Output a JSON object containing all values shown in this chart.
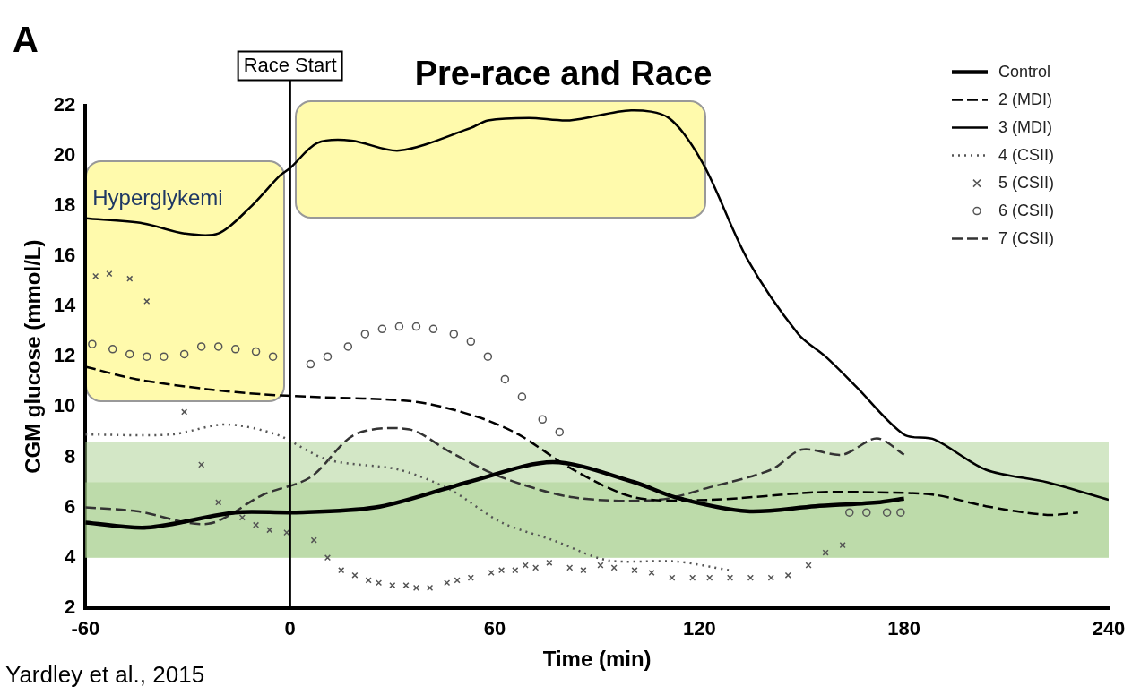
{
  "chart_data": {
    "type": "line",
    "title": "Pre-race and Race",
    "xlabel": "Time (min)",
    "ylabel": "CGM glucose (mmol/L)",
    "annotations": [
      "A",
      "Hyperglykemi",
      "Yardley et al., 2015"
    ],
    "xlim": [
      -60,
      240
    ],
    "xticks": [
      -60,
      0,
      60,
      120,
      180,
      240
    ],
    "ylim": [
      2,
      22
    ],
    "yticks": [
      2,
      4,
      6,
      8,
      10,
      12,
      14,
      16,
      18,
      20,
      22
    ],
    "grid": false,
    "legend": "top right",
    "ref_lines": [
      {
        "axis": "x",
        "value": 0,
        "label": "Race Start",
        "color": "#000000"
      }
    ],
    "bands": [
      {
        "axis": "y",
        "from": 4,
        "to": 8.6,
        "color": "#a8d08d"
      },
      {
        "axis": "y",
        "from": 4,
        "to": 7,
        "color": "#a8d08d"
      }
    ],
    "series": [
      {
        "name": "Control",
        "type": "line",
        "line_style": "solid",
        "marker": "none",
        "color": "#000000",
        "x": [
          -60,
          -42,
          -16,
          1,
          25,
          47,
          52,
          77,
          101,
          113,
          134,
          154,
          172,
          180
        ],
        "values": [
          5.4,
          5.2,
          5.8,
          5.8,
          6.0,
          6.8,
          7.0,
          7.8,
          7.0,
          6.4,
          5.85,
          6.05,
          6.2,
          6.35
        ]
      },
      {
        "name": "2 (MDI)",
        "type": "line",
        "line_style": "dashed",
        "marker": "none",
        "color": "#000000",
        "x": [
          -60,
          -45,
          -24,
          -8,
          6,
          37,
          55,
          67,
          83,
          101,
          123,
          154,
          172,
          189,
          204,
          222,
          231
        ],
        "values": [
          11.6,
          11.1,
          10.7,
          10.5,
          10.4,
          10.2,
          9.6,
          8.9,
          7.5,
          6.4,
          6.3,
          6.6,
          6.6,
          6.5,
          6.05,
          5.7,
          5.8
        ]
      },
      {
        "name": "3 (MDI)",
        "type": "line",
        "line_style": "solid",
        "marker": "none",
        "color": "#000000",
        "x": [
          -60,
          -43,
          -31,
          -21,
          -12,
          -3,
          0,
          8,
          18,
          32,
          53,
          58,
          70,
          82,
          100,
          111,
          121,
          134,
          149,
          157,
          166,
          180,
          189,
          204,
          222,
          240
        ],
        "values": [
          17.5,
          17.3,
          16.9,
          16.9,
          17.9,
          19.2,
          19.5,
          20.5,
          20.6,
          20.2,
          21.1,
          21.4,
          21.5,
          21.4,
          21.8,
          21.5,
          19.7,
          15.9,
          12.9,
          12.0,
          10.8,
          8.9,
          8.7,
          7.5,
          7.0,
          6.3
        ]
      },
      {
        "name": "4 (CSII)",
        "type": "line",
        "line_style": "dotted",
        "marker": "none",
        "color": "#555555",
        "x": [
          -60,
          -35,
          -19,
          -4,
          11,
          32,
          47,
          62,
          77,
          93,
          113,
          129
        ],
        "values": [
          8.9,
          8.9,
          9.3,
          8.9,
          7.9,
          7.5,
          6.7,
          5.4,
          4.7,
          3.9,
          3.85,
          3.5
        ]
      },
      {
        "name": "5 (CSII)",
        "type": "scatter",
        "line_style": "none",
        "marker": "cross",
        "color": "#555555",
        "x": [
          -57,
          -53,
          -47,
          -42,
          -31,
          -26,
          -21,
          -14,
          -10,
          -6,
          -1,
          7,
          11,
          15,
          19,
          23,
          26,
          30,
          34,
          37,
          41,
          46,
          49,
          53,
          59,
          62,
          66,
          69,
          72,
          76,
          82,
          86,
          91,
          95,
          101,
          106,
          112,
          118,
          123,
          129,
          135,
          141,
          146,
          152,
          157,
          162
        ],
        "values": [
          15.2,
          15.3,
          15.1,
          14.2,
          9.8,
          7.7,
          6.2,
          5.6,
          5.3,
          5.1,
          5.0,
          4.7,
          4.0,
          3.5,
          3.3,
          3.1,
          3.0,
          2.9,
          2.9,
          2.8,
          2.8,
          3.0,
          3.1,
          3.2,
          3.4,
          3.5,
          3.5,
          3.7,
          3.6,
          3.8,
          3.6,
          3.5,
          3.7,
          3.6,
          3.5,
          3.4,
          3.2,
          3.2,
          3.2,
          3.2,
          3.2,
          3.2,
          3.3,
          3.7,
          4.2,
          4.5
        ]
      },
      {
        "name": "6 (CSII)",
        "type": "scatter",
        "line_style": "none",
        "marker": "circle",
        "color": "#555555",
        "x": [
          -58,
          -52,
          -47,
          -42,
          -37,
          -31,
          -26,
          -21,
          -16,
          -10,
          -5,
          6,
          11,
          17,
          22,
          27,
          32,
          37,
          42,
          48,
          53,
          58,
          63,
          68,
          74,
          79,
          164,
          169,
          175,
          179
        ],
        "values": [
          12.5,
          12.3,
          12.1,
          12.0,
          12.0,
          12.1,
          12.4,
          12.4,
          12.3,
          12.2,
          12.0,
          11.7,
          12.0,
          12.4,
          12.9,
          13.1,
          13.2,
          13.2,
          13.1,
          12.9,
          12.6,
          12.0,
          11.1,
          10.4,
          9.5,
          9.0,
          5.8,
          5.8,
          5.8,
          5.8
        ]
      },
      {
        "name": "7 (CSII)",
        "type": "line",
        "line_style": "dashed",
        "marker": "none",
        "color": "#333333",
        "x": [
          -60,
          -45,
          -24,
          -8,
          6,
          19,
          35,
          47,
          62,
          83,
          108,
          123,
          141,
          150,
          162,
          172,
          180
        ],
        "values": [
          6.0,
          5.85,
          5.35,
          6.5,
          7.2,
          8.9,
          9.1,
          8.2,
          7.2,
          6.4,
          6.3,
          6.8,
          7.5,
          8.3,
          8.1,
          8.75,
          8.1
        ]
      }
    ]
  }
}
